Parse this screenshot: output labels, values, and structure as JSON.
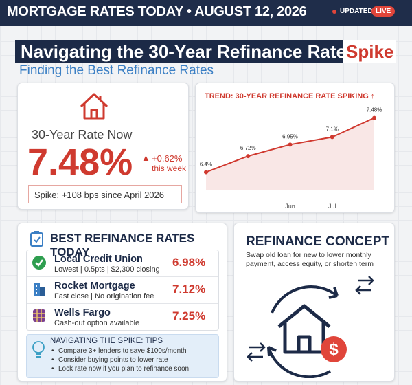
{
  "header": {
    "title": "MORTGAGE RATES TODAY • AUGUST 12, 2026",
    "updated": "UPDATED",
    "live": "LIVE"
  },
  "headline": {
    "title": "Navigating the 30-Year Refinance Rate",
    "highlight": "Spike",
    "subtitle": "Finding the Best Refinance Rates"
  },
  "rate_card": {
    "label": "30-Year Rate Now",
    "rate": "7.48%",
    "change": "+0.62%",
    "change_note": "this week",
    "spike_note": "Spike: +108 bps since April 2026"
  },
  "chart_data": {
    "type": "line",
    "title": "TREND: 30-YEAR REFINANCE RATE SPIKING ↑",
    "categories": [
      null,
      null,
      "Jun",
      "Jul",
      null
    ],
    "values": [
      6.4,
      6.72,
      6.95,
      7.1,
      7.48
    ],
    "value_labels": [
      "6.4%",
      "6.72%",
      "6.95%",
      "7.1%",
      "7.48%"
    ],
    "ylim": [
      6.05,
      7.9
    ],
    "color": "#d0392f"
  },
  "lenders": {
    "title": "BEST REFINANCE RATES TODAY",
    "items": [
      {
        "name": "Local Credit Union",
        "details": "Lowest | 0.5pts | $2,300 closing",
        "rate": "6.98%"
      },
      {
        "name": "Rocket Mortgage",
        "details": "Fast close | No origination fee",
        "rate": "7.12%"
      },
      {
        "name": "Wells Fargo",
        "details": "Cash-out option available",
        "rate": "7.25%"
      }
    ]
  },
  "tips": {
    "title": "NAVIGATING THE SPIKE: TIPS",
    "items": [
      "Compare 3+ lenders to save $100s/month",
      "Consider buying points to lower rate",
      "Lock rate now if you plan to refinance soon"
    ]
  },
  "concept": {
    "title": "REFINANCE CONCEPT",
    "description": "Swap old loan for new to lower monthly payment, access equity, or shorten term"
  }
}
